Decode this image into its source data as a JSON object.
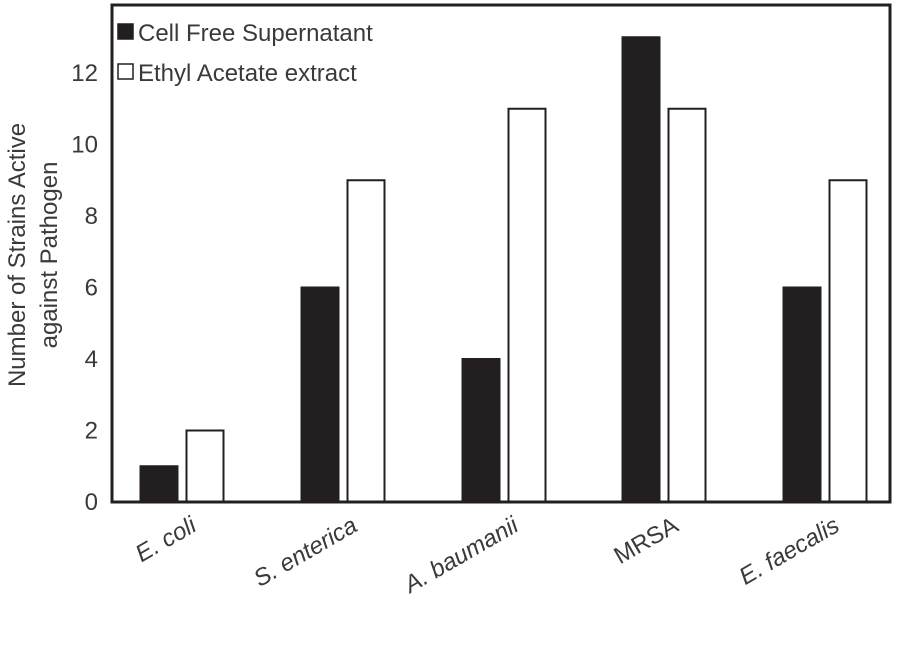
{
  "chart_data": {
    "type": "bar",
    "categories": [
      "E. coli",
      "S. enterica",
      "A. baumanii",
      "MRSA",
      "E. faecalis"
    ],
    "category_italic": [
      true,
      true,
      true,
      false,
      true
    ],
    "series": [
      {
        "name": "Cell Free Supernatant",
        "values": [
          1,
          6,
          4,
          13,
          6
        ],
        "color": "#231f20"
      },
      {
        "name": "Ethyl Acetate extract",
        "values": [
          2,
          9,
          11,
          11,
          9
        ],
        "color": "#ffffff"
      }
    ],
    "ylabel_line1": "Number of Strains Active",
    "ylabel_line2": "against Pathogen",
    "ylim": [
      0,
      14
    ],
    "yticks": [
      0,
      2,
      4,
      6,
      8,
      10,
      12
    ],
    "grid": false,
    "legend_position": "top-left"
  }
}
